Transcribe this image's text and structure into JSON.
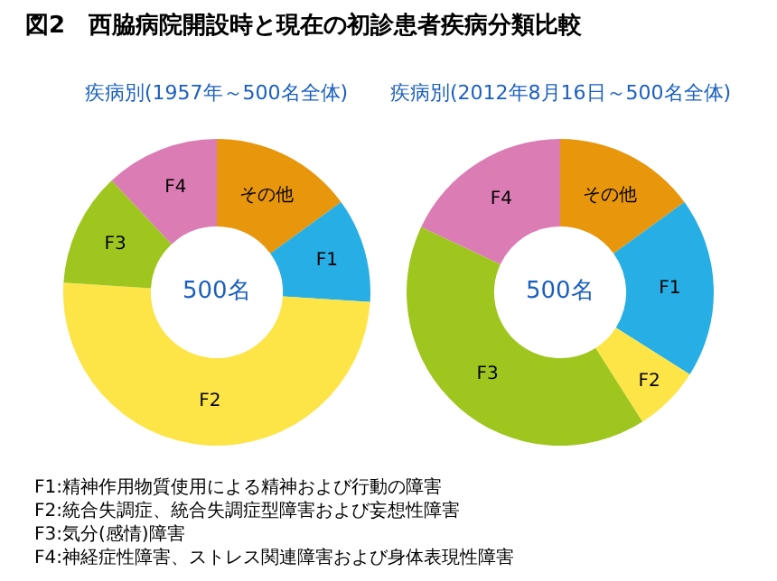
{
  "chart_data": [
    {
      "type": "donut",
      "title": "図2　西脇病院開設時と現在の初診患者疾病分類比較",
      "subtitle": "疾病別(1957年～500名全体)",
      "categories": [
        "その他",
        "F1",
        "F2",
        "F3",
        "F4"
      ],
      "values": [
        15,
        11,
        50,
        12,
        12
      ],
      "colors": [
        "#e8960c",
        "#27aee4",
        "#fde447",
        "#9fc61f",
        "#db7cb4"
      ],
      "annotations": [
        "500名"
      ],
      "legend": false
    },
    {
      "type": "donut",
      "subtitle": "疾病別(2012年8月16日～500名全体)",
      "categories": [
        "その他",
        "F1",
        "F2",
        "F3",
        "F4"
      ],
      "values": [
        15,
        19,
        7,
        41,
        18
      ],
      "colors": [
        "#e8960c",
        "#27aee4",
        "#fde447",
        "#9fc61f",
        "#db7cb4"
      ],
      "annotations": [
        "500名",
        "F1:精神作用物質使用による精神および行動の障害",
        "F2:統合失調症、統合失調症型障害および妄想性障害",
        "F3:気分(感情)障害",
        "F4:神経症性障害、ストレス関連障害および身体表現性障害"
      ],
      "legend": false
    }
  ]
}
